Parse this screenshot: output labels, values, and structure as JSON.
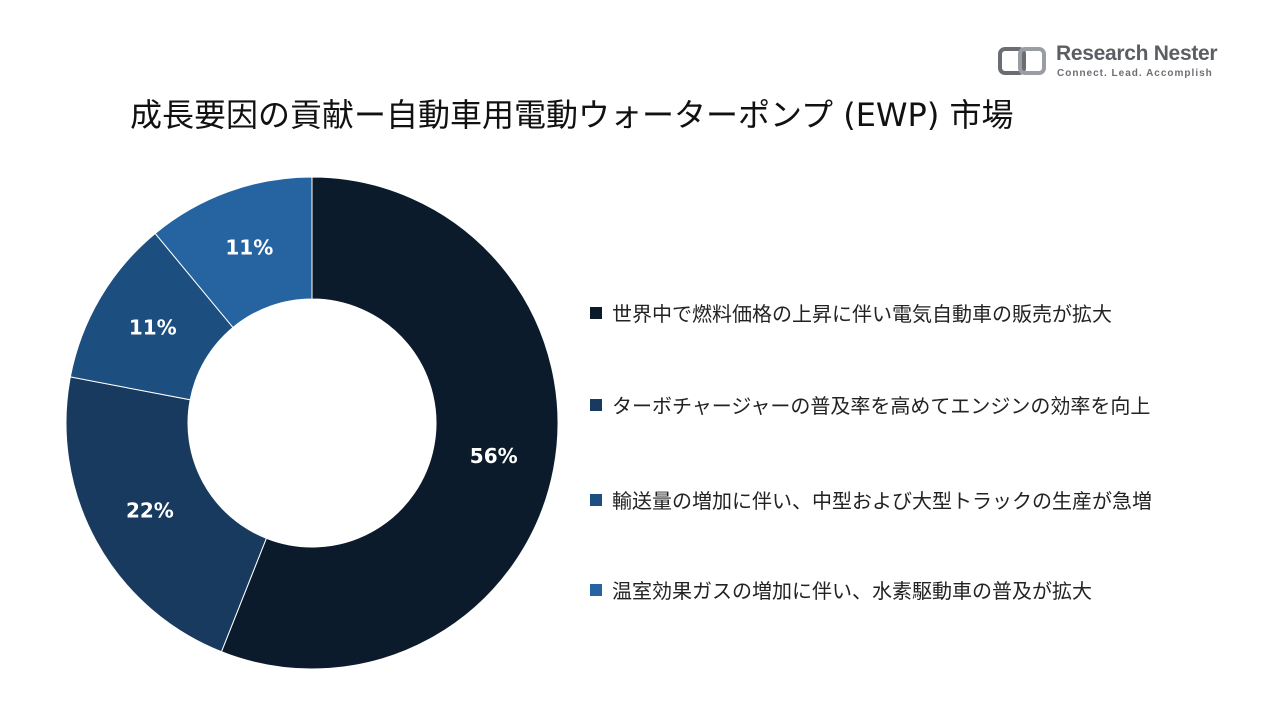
{
  "brand": {
    "name": "Research Nester",
    "tagline": "Connect. Lead. Accomplish",
    "colors": {
      "logo_primary": "#5b5f64",
      "logo_secondary": "#8a8e93"
    }
  },
  "chart_data": {
    "type": "pie",
    "variant": "donut",
    "title": "成長要因の貢献ー自動車用電動ウォーターポンプ (EWP) 市場",
    "legend_position": "right",
    "slices": [
      {
        "label": "世界中で燃料価格の上昇に伴い電気自動車の販売が拡大",
        "value": 56,
        "display": "56%",
        "color": "#0c1b2b"
      },
      {
        "label": "ターボチャージャーの普及率を高めてエンジンの効率を向上",
        "value": 22,
        "display": "22%",
        "color": "#173a5e"
      },
      {
        "label": " 輸送量の増加に伴い、中型および大型トラックの生産が急増",
        "value": 11,
        "display": "11%",
        "color": "#1c4e80"
      },
      {
        "label": "温室効果ガスの増加に伴い、水素駆動車の普及が拡大",
        "value": 11,
        "display": "11%",
        "color": "#2563a1"
      }
    ]
  }
}
